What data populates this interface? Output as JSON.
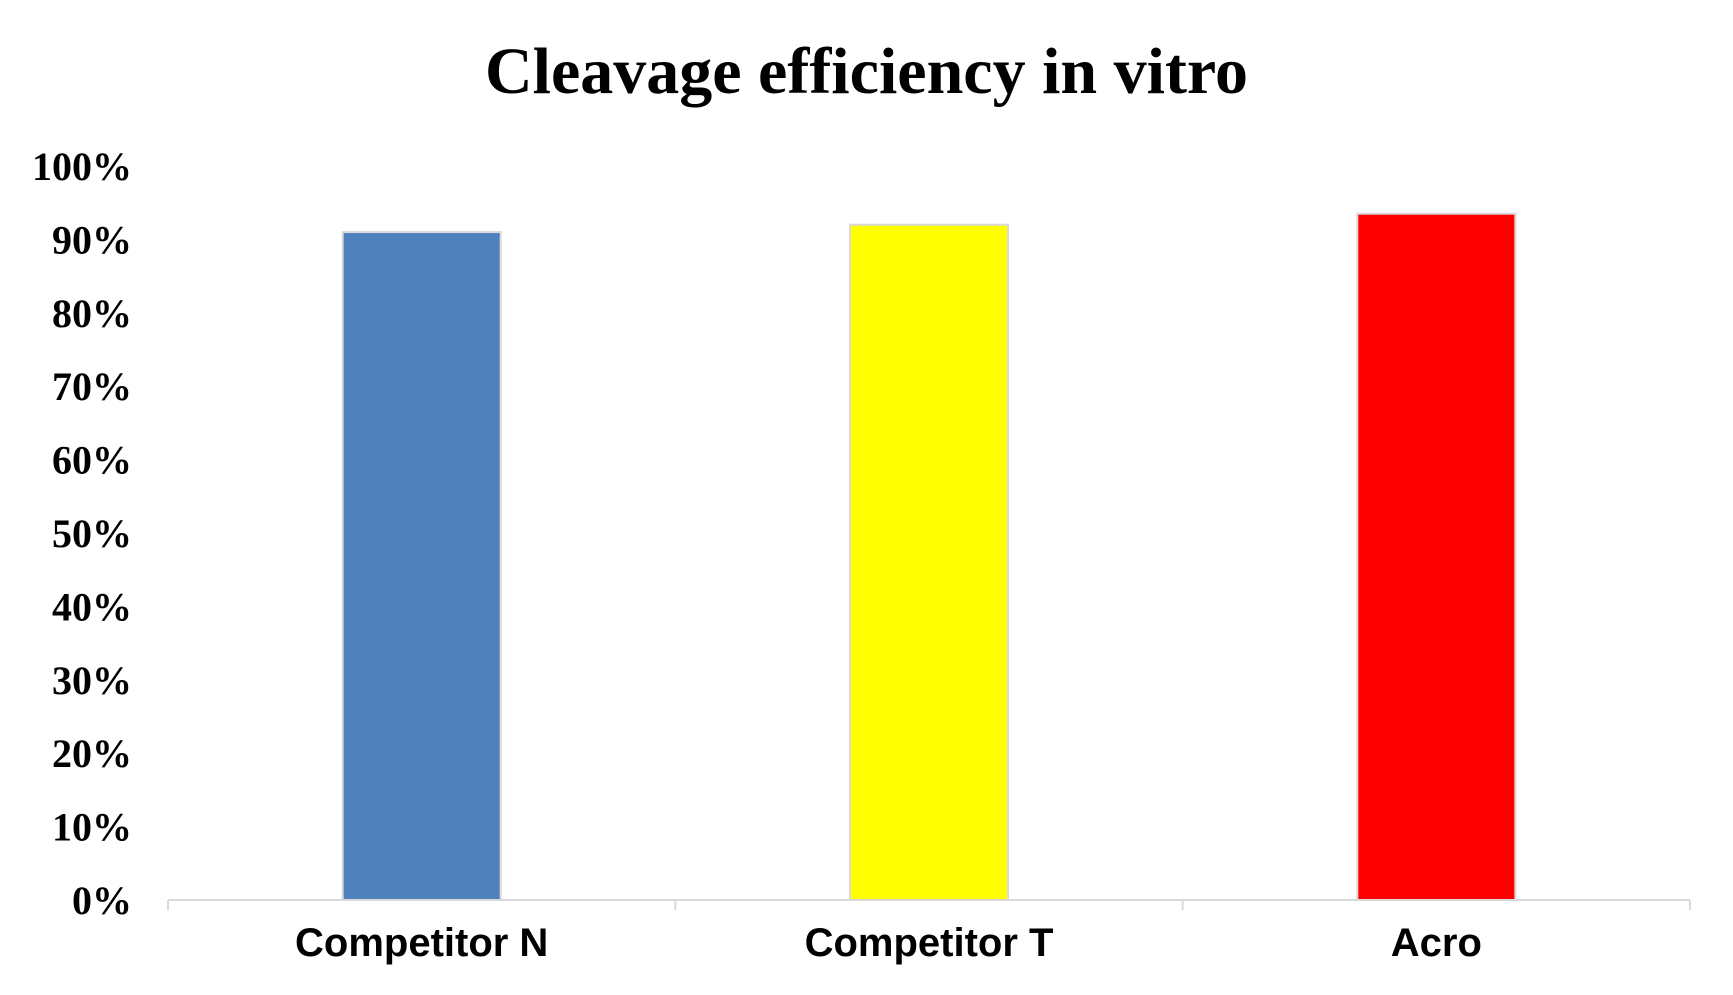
{
  "chart_data": {
    "type": "bar",
    "title": "Cleavage efficiency in vitro",
    "xlabel": "",
    "ylabel": "",
    "categories": [
      "Competitor N",
      "Competitor T",
      "Acro"
    ],
    "values": [
      91,
      92,
      93.5
    ],
    "colors": [
      "#4f81bd",
      "#ffff00",
      "#ff0000"
    ],
    "bar_border_color": "#d9d9d9",
    "axis_color": "#d9d9d9",
    "ylim": [
      0,
      100
    ],
    "ytick_values": [
      0,
      10,
      20,
      30,
      40,
      50,
      60,
      70,
      80,
      90,
      100
    ],
    "ytick_labels": [
      "0%",
      "10%",
      "20%",
      "30%",
      "40%",
      "50%",
      "60%",
      "70%",
      "80%",
      "90%",
      "100%"
    ],
    "grid": false,
    "legend": "none"
  }
}
